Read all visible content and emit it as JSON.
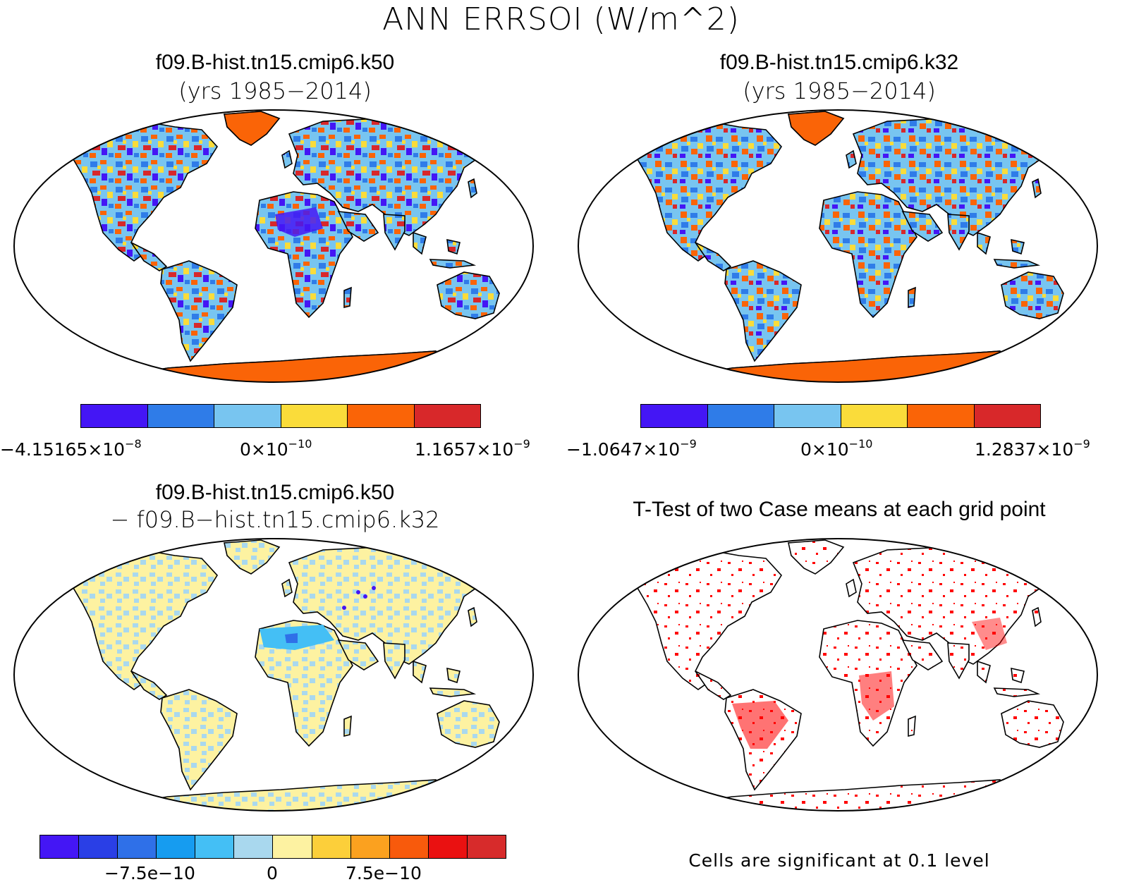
{
  "title": "ANN ERRSOI (W/m^2)",
  "colors": {
    "ramp6": [
      "#4416f5",
      "#2f7ce8",
      "#78c5f0",
      "#fadc3a",
      "#fa6407",
      "#d8282a"
    ],
    "ramp12": [
      "#4416f5",
      "#2a3fe6",
      "#2f70e8",
      "#169cf0",
      "#44bff5",
      "#a9d8ee",
      "#fdf2a1",
      "#fccf3a",
      "#fba11f",
      "#f85a0c",
      "#ea1111",
      "#d72b2b"
    ],
    "land_gray": "#ffffff",
    "signif": "#ff0000"
  },
  "panels": {
    "top_left": {
      "title": "f09.B-hist.tn15.cmip6.k50",
      "subtitle": "(yrs 1985−2014)",
      "colorbar": {
        "min_label": "−4.15165×10",
        "min_exp": "−8",
        "mid_label": "0×10",
        "mid_exp": "−10",
        "max_label": "1.1657×10",
        "max_exp": "−9"
      }
    },
    "top_right": {
      "title": "f09.B-hist.tn15.cmip6.k32",
      "subtitle": "(yrs 1985−2014)",
      "colorbar": {
        "min_label": "−1.0647×10",
        "min_exp": "−9",
        "mid_label": "0×10",
        "mid_exp": "−10",
        "max_label": "1.2837×10",
        "max_exp": "−9"
      }
    },
    "bottom_left": {
      "title": "f09.B-hist.tn15.cmip6.k50",
      "subtitle": "− f09.B−hist.tn15.cmip6.k32",
      "colorbar": {
        "labels": [
          "−7.5e−10",
          "0",
          "7.5e−10"
        ]
      }
    },
    "bottom_right": {
      "title": "T-Test of two Case means at each grid point",
      "note": "Cells are significant at 0.1 level"
    }
  }
}
